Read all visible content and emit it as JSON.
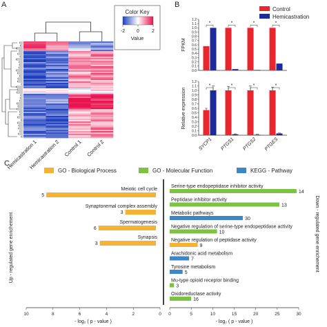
{
  "panels": {
    "a": "A",
    "b": "B",
    "c": "C"
  },
  "colors": {
    "control": "#e8262b",
    "hemi": "#1d2a9a",
    "bio": "#f5b335",
    "mol": "#7dc242",
    "kegg": "#3f86c8",
    "heat_low": "#1f3fbf",
    "heat_mid": "#ffffff",
    "heat_high": "#e8134f"
  },
  "heatmap": {
    "color_key": {
      "title": "Color Key",
      "label": "Value",
      "ticks": [
        "-2",
        "0",
        "2"
      ]
    },
    "columns": [
      "Hemicastration 1",
      "Hemicastration 2",
      "Control 1",
      "Control 2"
    ]
  },
  "chart_data": [
    {
      "type": "bar",
      "title": "",
      "ylabel": "FPKM",
      "ylim": [
        0,
        1.2
      ],
      "yticks": [
        "0.0",
        "0.1",
        "0.2",
        "0.3",
        "0.4",
        "0.5",
        "0.6",
        "0.7",
        "0.8",
        "0.9",
        "1.0",
        "1.1",
        "1.2"
      ],
      "categories": [
        "SYCP1",
        "PTGS1",
        "PTGS2",
        "PTGES"
      ],
      "series": [
        {
          "name": "Control",
          "values": [
            0.57,
            1.0,
            1.0,
            1.0
          ]
        },
        {
          "name": "Hemicastration",
          "values": [
            1.0,
            0.03,
            0.01,
            0.16
          ]
        }
      ],
      "significance": [
        "*",
        "*",
        "*",
        "*"
      ],
      "legend": "top-right"
    },
    {
      "type": "bar",
      "title": "",
      "ylabel": "Relative expression",
      "ylim": [
        0,
        1.2
      ],
      "yticks": [
        "0.0",
        "0.1",
        "0.2",
        "0.3",
        "0.4",
        "0.5",
        "0.6",
        "0.7",
        "0.8",
        "0.9",
        "1.0",
        "1.1",
        "1.2"
      ],
      "categories": [
        "SYCP1",
        "PTGS1",
        "PTGS2",
        "PTGES"
      ],
      "series": [
        {
          "name": "Control",
          "values": [
            0.56,
            1.0,
            1.0,
            1.0
          ],
          "errors": [
            0.04,
            0.09,
            0.1,
            0.07
          ]
        },
        {
          "name": "Hemicastration",
          "values": [
            1.0,
            0.02,
            0.01,
            0.04
          ],
          "errors": [
            0.1,
            0.01,
            0.01,
            0.01
          ]
        }
      ],
      "significance": [
        "*",
        "*",
        "*",
        "*"
      ]
    },
    {
      "type": "bar",
      "orientation": "horizontal",
      "xlabel": "- log₂ ( p - value )",
      "xlim": [
        0,
        10
      ],
      "xticks": [
        "10",
        "8",
        "6",
        "4",
        "2",
        "0"
      ],
      "ylabel": "Up - regulated  gene enrichement",
      "legend": "top",
      "categories": [
        "Meiotic cell cycle",
        "Synaptonemal complex assembly",
        "Spermatogenesis",
        "Synapsis"
      ],
      "series": [
        {
          "name": "GO - Biological Process",
          "values": [
            8.5,
            2.6,
            4.6,
            4.5
          ]
        }
      ],
      "counts": [
        "5",
        "3",
        "6",
        "3"
      ]
    },
    {
      "type": "bar",
      "orientation": "horizontal",
      "xlabel": "- log₂ ( p - value )",
      "xlim": [
        0,
        30
      ],
      "xticks": [
        "0",
        "5",
        "10",
        "15",
        "20",
        "25",
        "30"
      ],
      "ylabel": "Down - regulated  gene enrichement",
      "categories": [
        "Serine-type endopeptidase inhibitor activity",
        "Peptidase inhibitor activity",
        "Metabolic pathways",
        "Negative regulation of serine-type endopeptidase activity",
        "Negative regulation of peptidase activity",
        "Arachidonic acid metabolism",
        "Tyrosine metabolism",
        "Mu-type opioid receptor binding",
        "Oxidoreductase activity"
      ],
      "groups": [
        "mol",
        "mol",
        "kegg",
        "mol",
        "bio",
        "kegg",
        "kegg",
        "mol",
        "mol"
      ],
      "series": [
        {
          "name": "",
          "values": [
            29.5,
            25.5,
            17.0,
            11.0,
            6.5,
            4.5,
            3.0,
            1.0,
            5.0
          ]
        }
      ],
      "counts": [
        "14",
        "13",
        "30",
        "10",
        "9",
        "7",
        "5",
        "3",
        "16"
      ],
      "legend_entries": [
        "GO - Biological Process",
        "GO - Molecular Function",
        "KEGG - Pathway"
      ]
    }
  ]
}
